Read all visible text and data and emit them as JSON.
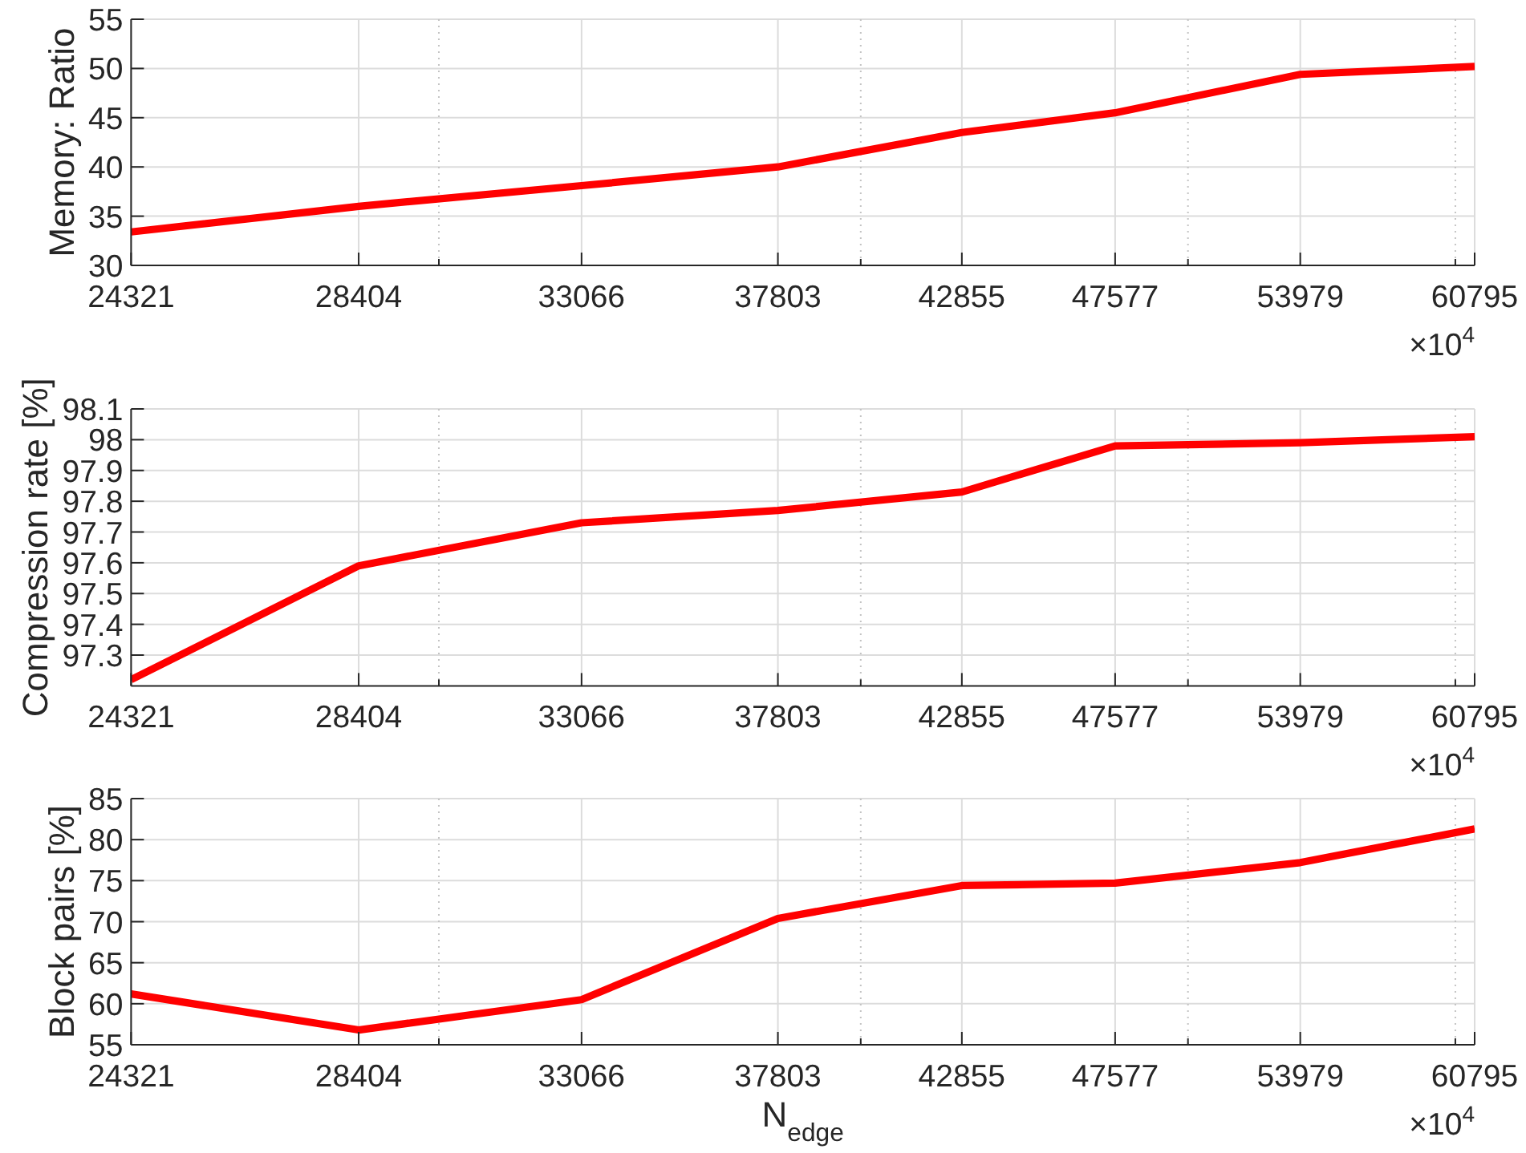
{
  "chart_data": [
    {
      "type": "line",
      "ylabel": "Memory: Ratio",
      "x": [
        24321,
        28404,
        33066,
        37803,
        42855,
        47577,
        53979,
        60795
      ],
      "series": [
        {
          "color": "#ff0000",
          "values": [
            33.4,
            36.0,
            38.1,
            40.0,
            43.5,
            45.5,
            49.4,
            50.2
          ]
        }
      ],
      "xlim": [
        24321,
        60795
      ],
      "xticks": [
        24321,
        28404,
        {
          "value": 30000,
          "label": null
        },
        33066,
        37803,
        {
          "value": 40000,
          "label": null
        },
        42855,
        47577,
        {
          "value": 50000,
          "label": null
        },
        53979,
        {
          "value": 60000,
          "label": null
        },
        60795
      ],
      "ylim": [
        30,
        55
      ],
      "yticks": [
        30,
        35,
        40,
        45,
        50,
        55
      ],
      "log": "x",
      "grid": true,
      "annotations": [
        "×10$^{4}$"
      ]
    },
    {
      "type": "line",
      "ylabel": "Compression rate [%]",
      "x": [
        24321,
        28404,
        33066,
        37803,
        42855,
        47577,
        53979,
        60795
      ],
      "series": [
        {
          "color": "#ff0000",
          "values": [
            97.22,
            97.59,
            97.73,
            97.77,
            97.83,
            97.98,
            97.99,
            98.01
          ]
        }
      ],
      "xlim": [
        24321,
        60795
      ],
      "xticks": [
        24321,
        28404,
        {
          "value": 30000,
          "label": null
        },
        33066,
        37803,
        {
          "value": 40000,
          "label": null
        },
        42855,
        47577,
        {
          "value": 50000,
          "label": null
        },
        53979,
        {
          "value": 60000,
          "label": null
        },
        60795
      ],
      "ylim": [
        97.2,
        98.1
      ],
      "yticks": [
        97.3,
        97.4,
        97.5,
        97.6,
        97.7,
        97.8,
        97.9,
        98,
        98.1
      ],
      "log": "x",
      "grid": true,
      "annotations": [
        "×10$^{4}$"
      ]
    },
    {
      "type": "line",
      "xlabel": "N$_{edge}$",
      "ylabel": "Block pairs [%]",
      "x": [
        24321,
        28404,
        33066,
        37803,
        42855,
        47577,
        53979,
        60795
      ],
      "series": [
        {
          "color": "#ff0000",
          "values": [
            61.2,
            56.8,
            60.5,
            70.4,
            74.4,
            74.7,
            77.2,
            81.3
          ]
        }
      ],
      "xlim": [
        24321,
        60795
      ],
      "xticks": [
        24321,
        28404,
        {
          "value": 30000,
          "label": null
        },
        33066,
        37803,
        {
          "value": 40000,
          "label": null
        },
        42855,
        47577,
        {
          "value": 50000,
          "label": null
        },
        53979,
        {
          "value": 60000,
          "label": null
        },
        60795
      ],
      "ylim": [
        55,
        85
      ],
      "yticks": [
        55,
        60,
        65,
        70,
        75,
        80,
        85
      ],
      "log": "x",
      "grid": true,
      "annotations": [
        "×10$^{4}$"
      ]
    }
  ]
}
